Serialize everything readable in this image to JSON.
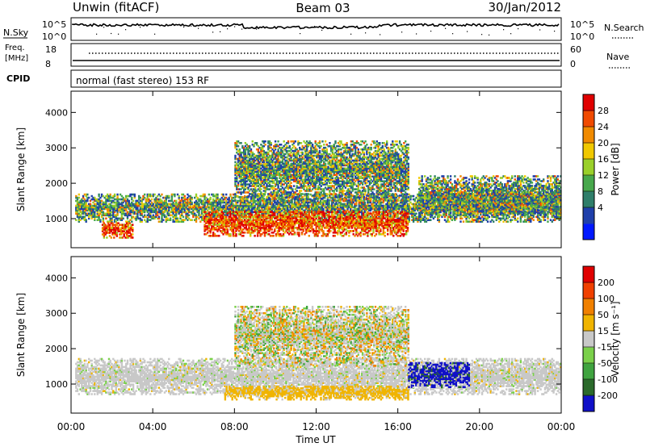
{
  "header": {
    "station": "Unwin (fitACF)",
    "beam": "Beam 03",
    "date": "30/Jan/2012"
  },
  "top_panels": {
    "nsky_label": "N.Sky",
    "nsearch_label": "N.Search",
    "nsky_ticks": [
      "10^5",
      "10^0"
    ],
    "nsearch_ticks": [
      "10^5",
      "10^0"
    ],
    "freq_label": "Freq.",
    "freq_unit": "[MHz]",
    "freq_ticks": [
      "18",
      "8"
    ],
    "nave_label": "Nave",
    "nave_ticks": [
      "60",
      "0"
    ],
    "cpid_label": "CPID",
    "cpid_text": "normal (fast stereo) 153 RF"
  },
  "chart_data": [
    {
      "type": "heatmap",
      "name": "power",
      "ylabel": "Slant Range [km]",
      "xlabel": "Time UT",
      "x_ticks": [
        "00:00",
        "04:00",
        "08:00",
        "12:00",
        "16:00",
        "20:00",
        "00:00"
      ],
      "x_hours": [
        0,
        4,
        8,
        12,
        16,
        20,
        24
      ],
      "y_ticks": [
        1000,
        2000,
        3000,
        4000
      ],
      "ylim": [
        180,
        4600
      ],
      "xlim": [
        0,
        24
      ],
      "colorbar": {
        "label": "Power [dB]",
        "ticks": [
          "28",
          "24",
          "20",
          "16",
          "12",
          "8",
          "4"
        ],
        "colors": [
          "#0018ff",
          "#1f3faa",
          "#2f7e6a",
          "#47a84c",
          "#9ad02a",
          "#f0c800",
          "#f08a00",
          "#f04a00",
          "#e00000"
        ]
      },
      "features": [
        {
          "t": [
            0.2,
            24.0
          ],
          "r": [
            900,
            1700
          ],
          "level": "mid"
        },
        {
          "t": [
            6.5,
            16.5
          ],
          "r": [
            500,
            1200
          ],
          "level": "high"
        },
        {
          "t": [
            8.0,
            16.5
          ],
          "r": [
            1500,
            3200
          ],
          "level": "mid"
        },
        {
          "t": [
            1.5,
            3.0
          ],
          "r": [
            450,
            900
          ],
          "level": "high"
        },
        {
          "t": [
            17.0,
            24.0
          ],
          "r": [
            1100,
            2200
          ],
          "level": "mid"
        }
      ]
    },
    {
      "type": "heatmap",
      "name": "velocity",
      "ylabel": "Slant Range [km]",
      "xlabel": "Time UT",
      "x_ticks": [
        "00:00",
        "04:00",
        "08:00",
        "12:00",
        "16:00",
        "20:00",
        "00:00"
      ],
      "x_hours": [
        0,
        4,
        8,
        12,
        16,
        20,
        24
      ],
      "y_ticks": [
        1000,
        2000,
        3000,
        4000
      ],
      "ylim": [
        180,
        4600
      ],
      "xlim": [
        0,
        24
      ],
      "colorbar": {
        "label": "Velocity [m s⁻¹]",
        "ticks": [
          "200",
          "100",
          "50",
          "15",
          "-15",
          "-50",
          "-100",
          "-200"
        ],
        "colors": [
          "#1010c8",
          "#2b6a2b",
          "#3fa33f",
          "#7ad04a",
          "#c8c8c8",
          "#f0b400",
          "#f08000",
          "#f04000",
          "#e00000"
        ]
      },
      "features": [
        {
          "t": [
            0.2,
            24.0
          ],
          "r": [
            700,
            1700
          ],
          "level": "gray"
        },
        {
          "t": [
            7.5,
            16.5
          ],
          "r": [
            550,
            950
          ],
          "level": "orange"
        },
        {
          "t": [
            16.5,
            19.5
          ],
          "r": [
            900,
            1600
          ],
          "level": "blue"
        },
        {
          "t": [
            8.0,
            16.5
          ],
          "r": [
            1500,
            3200
          ],
          "level": "mixed"
        }
      ]
    }
  ]
}
